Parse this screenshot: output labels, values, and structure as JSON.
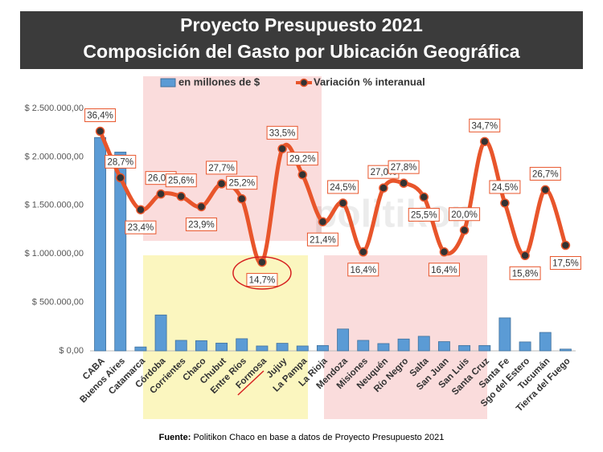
{
  "chart_data": {
    "type": "bar-line",
    "title": "Proyecto Presupuesto 2021",
    "subtitle": "Composición del Gasto por Ubicación Geográfica",
    "watermark": "politikon",
    "source_prefix": "Fuente:",
    "source": "Politikon Chaco en base a datos de Proyecto Presupuesto 2021",
    "categories": [
      "CABA",
      "Buenos Aires",
      "Catamarca",
      "Córdoba",
      "Corrientes",
      "Chaco",
      "Chubut",
      "Entre Ríos",
      "Formosa",
      "Jujuy",
      "La Pampa",
      "La Rioja",
      "Mendoza",
      "Misiones",
      "Neuquén",
      "Río Negro",
      "Salta",
      "San Juan",
      "San Luis",
      "Santa Cruz",
      "Santa Fe",
      "Sgo del Estero",
      "Tucumán",
      "Tierra del Fuego"
    ],
    "series": [
      {
        "name": "en millones de $",
        "type": "bar",
        "color": "#5b9bd5",
        "values": [
          2200000,
          2050000,
          40000,
          370000,
          108000,
          105000,
          80000,
          125000,
          50000,
          78000,
          50000,
          55000,
          225000,
          108000,
          75000,
          122000,
          150000,
          95000,
          55000,
          55000,
          340000,
          92000,
          190000,
          18000
        ]
      },
      {
        "name": "Variación % interanual",
        "type": "line",
        "axis": "y2",
        "color": "#e8552b",
        "values": [
          36.4,
          28.7,
          23.4,
          26.0,
          25.6,
          23.9,
          27.7,
          25.2,
          14.7,
          33.5,
          29.2,
          21.4,
          24.5,
          16.4,
          27.0,
          27.8,
          25.5,
          16.4,
          20.0,
          34.7,
          24.5,
          15.8,
          26.7,
          17.5
        ],
        "value_labels": [
          "36,4%",
          "28,7%",
          "23,4%",
          "26,0%",
          "25,6%",
          "23,9%",
          "27,7%",
          "25,2%",
          "14,7%",
          "33,5%",
          "29,2%",
          "21,4%",
          "24,5%",
          "16,4%",
          "27,0%",
          "27,8%",
          "25,5%",
          "16,4%",
          "20,0%",
          "34,7%",
          "24,5%",
          "15,8%",
          "26,7%",
          "17,5%"
        ]
      }
    ],
    "ylim": [
      0,
      2500000
    ],
    "yticks": [
      {
        "value": 0,
        "label": "$ 0,00"
      },
      {
        "value": 500000,
        "label": "$ 500.000,00"
      },
      {
        "value": 1000000,
        "label": "$ 1.000.000,00"
      },
      {
        "value": 1500000,
        "label": "$ 1.500.000,00"
      },
      {
        "value": 2000000,
        "label": "$ 2.000.000,00"
      },
      {
        "value": 2500000,
        "label": "$ 2.500.000,00"
      }
    ],
    "y2lim": [
      0,
      40.2
    ],
    "grid": false
  }
}
